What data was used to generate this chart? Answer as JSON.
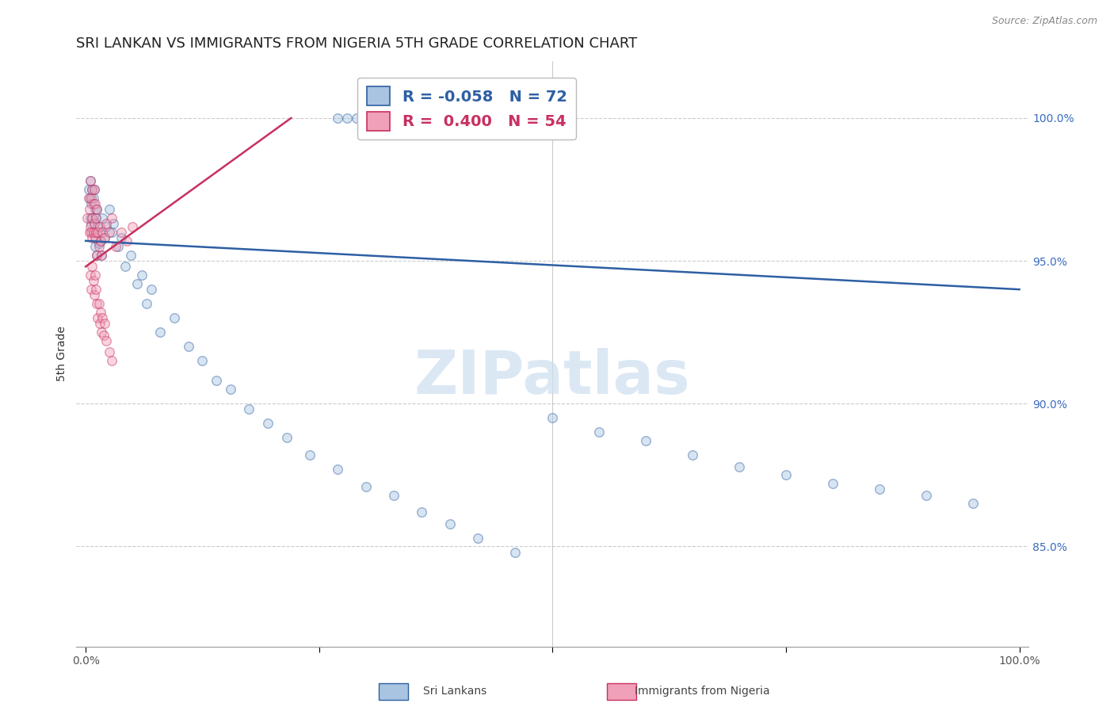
{
  "title": "SRI LANKAN VS IMMIGRANTS FROM NIGERIA 5TH GRADE CORRELATION CHART",
  "source": "Source: ZipAtlas.com",
  "ylabel": "5th Grade",
  "legend_blue_R": "-0.058",
  "legend_blue_N": "72",
  "legend_pink_R": "0.400",
  "legend_pink_N": "54",
  "legend_blue_label": "Sri Lankans",
  "legend_pink_label": "Immigrants from Nigeria",
  "watermark": "ZIPatlas",
  "blue_color": "#a8c4e0",
  "blue_line_color": "#2e5fa3",
  "pink_color": "#f0a0b8",
  "pink_line_color": "#c83060",
  "ytick_labels": [
    "85.0%",
    "90.0%",
    "95.0%",
    "100.0%"
  ],
  "ytick_values": [
    0.85,
    0.9,
    0.95,
    1.0
  ],
  "xtick_labels": [
    "0.0%",
    "",
    "",
    "",
    "100.0%"
  ],
  "xtick_values": [
    0.0,
    0.25,
    0.5,
    0.75,
    1.0
  ],
  "blue_scatter_x": [
    0.003,
    0.004,
    0.005,
    0.005,
    0.006,
    0.006,
    0.007,
    0.007,
    0.008,
    0.008,
    0.009,
    0.009,
    0.01,
    0.01,
    0.011,
    0.011,
    0.012,
    0.012,
    0.013,
    0.014,
    0.015,
    0.016,
    0.017,
    0.018,
    0.02,
    0.022,
    0.025,
    0.028,
    0.03,
    0.035,
    0.038,
    0.042,
    0.048,
    0.055,
    0.06,
    0.065,
    0.07,
    0.08,
    0.095,
    0.11,
    0.125,
    0.14,
    0.155,
    0.175,
    0.195,
    0.215,
    0.24,
    0.27,
    0.3,
    0.33,
    0.36,
    0.39,
    0.42,
    0.46,
    0.5,
    0.55,
    0.6,
    0.65,
    0.7,
    0.75,
    0.8,
    0.85,
    0.9,
    0.95,
    0.27,
    0.28,
    0.29,
    0.3,
    0.31,
    0.32,
    0.33,
    0.34
  ],
  "blue_scatter_y": [
    0.975,
    0.972,
    0.978,
    0.965,
    0.97,
    0.963,
    0.975,
    0.965,
    0.972,
    0.96,
    0.975,
    0.963,
    0.968,
    0.955,
    0.965,
    0.958,
    0.968,
    0.952,
    0.962,
    0.956,
    0.96,
    0.957,
    0.952,
    0.965,
    0.958,
    0.962,
    0.968,
    0.96,
    0.963,
    0.955,
    0.958,
    0.948,
    0.952,
    0.942,
    0.945,
    0.935,
    0.94,
    0.925,
    0.93,
    0.92,
    0.915,
    0.908,
    0.905,
    0.898,
    0.893,
    0.888,
    0.882,
    0.877,
    0.871,
    0.868,
    0.862,
    0.858,
    0.853,
    0.848,
    0.895,
    0.89,
    0.887,
    0.882,
    0.878,
    0.875,
    0.872,
    0.87,
    0.868,
    0.865,
    1.0,
    1.0,
    1.0,
    1.0,
    1.0,
    1.0,
    1.0,
    1.0
  ],
  "pink_scatter_x": [
    0.002,
    0.003,
    0.004,
    0.004,
    0.005,
    0.005,
    0.006,
    0.006,
    0.007,
    0.007,
    0.007,
    0.008,
    0.008,
    0.009,
    0.009,
    0.01,
    0.01,
    0.011,
    0.011,
    0.012,
    0.012,
    0.013,
    0.014,
    0.015,
    0.016,
    0.017,
    0.018,
    0.02,
    0.022,
    0.025,
    0.028,
    0.032,
    0.038,
    0.044,
    0.05,
    0.005,
    0.006,
    0.007,
    0.008,
    0.009,
    0.01,
    0.011,
    0.012,
    0.013,
    0.014,
    0.015,
    0.016,
    0.017,
    0.018,
    0.019,
    0.02,
    0.022,
    0.025,
    0.028
  ],
  "pink_scatter_y": [
    0.965,
    0.972,
    0.968,
    0.96,
    0.978,
    0.962,
    0.972,
    0.96,
    0.975,
    0.965,
    0.958,
    0.97,
    0.96,
    0.975,
    0.963,
    0.97,
    0.958,
    0.965,
    0.96,
    0.968,
    0.952,
    0.96,
    0.955,
    0.962,
    0.957,
    0.952,
    0.96,
    0.958,
    0.963,
    0.96,
    0.965,
    0.955,
    0.96,
    0.957,
    0.962,
    0.945,
    0.94,
    0.948,
    0.943,
    0.938,
    0.945,
    0.94,
    0.935,
    0.93,
    0.935,
    0.928,
    0.932,
    0.925,
    0.93,
    0.924,
    0.928,
    0.922,
    0.918,
    0.915
  ],
  "blue_line_x": [
    0.0,
    1.0
  ],
  "blue_line_y_start": 0.957,
  "blue_line_y_end": 0.94,
  "pink_line_x_start": 0.0,
  "pink_line_x_end": 0.22,
  "pink_line_y_start": 0.948,
  "pink_line_y_end": 1.0,
  "xmin": -0.01,
  "xmax": 1.01,
  "ymin": 0.815,
  "ymax": 1.02,
  "grid_color": "#cccccc",
  "background_color": "#ffffff",
  "title_fontsize": 13,
  "axis_label_fontsize": 10,
  "tick_fontsize": 10,
  "scatter_size": 70,
  "scatter_alpha": 0.45,
  "scatter_linewidth": 1.0
}
